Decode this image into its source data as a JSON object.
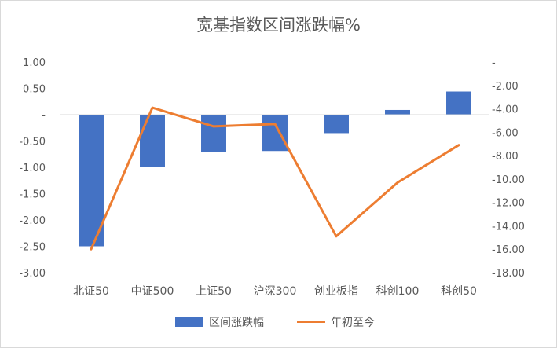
{
  "chart_data": {
    "type": "bar",
    "title": "宽基指数区间涨跌幅%",
    "categories": [
      "北证50",
      "中证500",
      "上证50",
      "沪深300",
      "创业板指",
      "科创100",
      "科创50"
    ],
    "series": [
      {
        "name": "区间涨跌幅",
        "type": "bar",
        "axis": "left",
        "color": "#4472c4",
        "values": [
          -2.5,
          -1.0,
          -0.71,
          -0.69,
          -0.35,
          0.09,
          0.44
        ]
      },
      {
        "name": "年初至今",
        "type": "line",
        "axis": "right",
        "color": "#ed7d31",
        "values": [
          -16.0,
          -3.9,
          -5.5,
          -5.3,
          -14.9,
          -10.3,
          -7.1
        ]
      }
    ],
    "y_left": {
      "ylim": [
        -3.0,
        1.0
      ],
      "ticks": [
        1.0,
        0.5,
        0,
        -0.5,
        -1.0,
        -1.5,
        -2.0,
        -2.5,
        -3.0
      ],
      "tick_labels": [
        "1.00",
        "0.50",
        "-",
        "-0.50",
        "-1.00",
        "-1.50",
        "-2.00",
        "-2.50",
        "-3.00"
      ]
    },
    "y_right": {
      "ylim": [
        -18.0,
        0
      ],
      "ticks": [
        0,
        -2,
        -4,
        -6,
        -8,
        -10,
        -12,
        -14,
        -16,
        -18
      ],
      "tick_labels": [
        "-",
        "-2.00",
        "-4.00",
        "-6.00",
        "-8.00",
        "-10.00",
        "-12.00",
        "-14.00",
        "-16.00",
        "-18.00"
      ]
    },
    "grid": false,
    "legend": "bottom"
  }
}
